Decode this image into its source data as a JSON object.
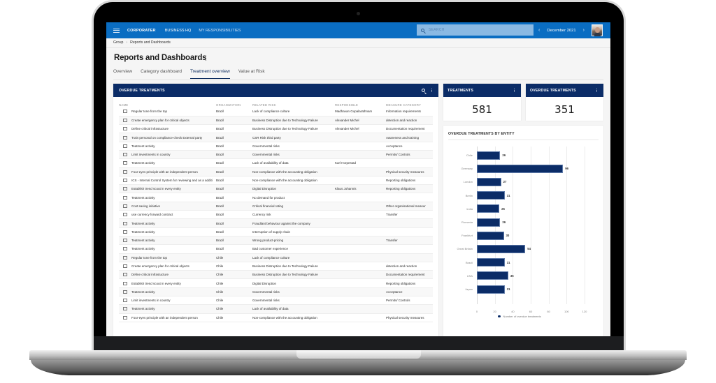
{
  "topbar": {
    "brand": "CORPORATER",
    "nav": [
      "BUSINESS HQ",
      "MY RESPONSIBILITIES"
    ],
    "search_placeholder": "SEARCH",
    "period": "December 2021",
    "prev": "‹",
    "next": "›"
  },
  "breadcrumb": [
    "Group",
    "Reports and Dashboards"
  ],
  "breadcrumb_sep": "›",
  "page": {
    "title": "Reports and Dashboards",
    "kebab": "⋮"
  },
  "tabs": [
    {
      "label": "Overview",
      "active": false
    },
    {
      "label": "Category dashboard",
      "active": false
    },
    {
      "label": "Treatment overview",
      "active": true
    },
    {
      "label": "Value at Risk",
      "active": false
    }
  ],
  "table": {
    "title": "OVERDUE TREATMENTS",
    "columns": [
      "NAME",
      "ORGANIZATION",
      "RELATED RISK",
      "RESPONSIBLE",
      "MEASURE CATEGORY"
    ],
    "rows": [
      [
        "Regular tone from the top",
        "Brazil",
        "Lack of compliance culture",
        "Madhavan Gopalarathnam",
        "Information requirements"
      ],
      [
        "Create emergency plan for critical objects",
        "Brazil",
        "Business Distruption due to Technology Failure",
        "Alexander Michel",
        "detection and reaction"
      ],
      [
        "Define critical infrastucture",
        "Brazil",
        "Business Distruption due to Technology Failure",
        "Alexander Michel",
        "Documentation requirement"
      ],
      [
        "Train personal on compliance-check External party",
        "Brazil",
        "CSR Risk third party",
        "",
        "Awareness and training"
      ],
      [
        "Teatment activity",
        "Brazil",
        "Governmental risks",
        "",
        "Acceptance"
      ],
      [
        "Limit investments in country",
        "Brazil",
        "Governmental risks",
        "",
        "Permits/ Controls"
      ],
      [
        "Teatment activity",
        "Brazil",
        "Lack of availability of data",
        "Karl Horpestad",
        ""
      ],
      [
        "Four-eyes principle with an independent person",
        "Brazil",
        "Non-compliance with the accounting obligation",
        "",
        "Physical security measures"
      ],
      [
        "ICS - Internal Control System for reviewing and as a additi",
        "Brazil",
        "Non-compliance with the accounting obligation",
        "",
        "Reporting obligations"
      ],
      [
        "Establish trend scout in every entity",
        "Brazil",
        "Digital Disruption",
        "Klaus Johannis",
        "Reporting obligations"
      ],
      [
        "Teatment activity",
        "Brazil",
        "No demand for product",
        "",
        ""
      ],
      [
        "Cost saving initiative",
        "Brazil",
        "Critical financial rating",
        "",
        "Other organisational measur"
      ],
      [
        "use currency forward contract",
        "Brazil",
        "Currency risk",
        "",
        "Transfer"
      ],
      [
        "Teatment activity",
        "Brazil",
        "Fraudlant behaviour against the company",
        "",
        ""
      ],
      [
        "Teatment activity",
        "Brazil",
        "Interruption of supply chain",
        "",
        ""
      ],
      [
        "Teatment activity",
        "Brazil",
        "Wrong product-pricing",
        "",
        "Transfer"
      ],
      [
        "Teatment activity",
        "Brazil",
        "Bad customer experience",
        "",
        ""
      ],
      [
        "Regular tone from the top",
        "Chile",
        "Lack of compliance culture",
        "",
        ""
      ],
      [
        "Create emergency plan for critical objects",
        "Chile",
        "Business Distruption due to Technology Failure",
        "",
        "detection and reaction"
      ],
      [
        "Define critical infrastucture",
        "Chile",
        "Business Distruption due to Technology Failure",
        "",
        "Documentation requirement"
      ],
      [
        "Establish trend scout in every entity",
        "Chile",
        "Digital Disruption",
        "",
        "Reporting obligations"
      ],
      [
        "Teatment activity",
        "Chile",
        "Governmental risks",
        "",
        "Acceptance"
      ],
      [
        "Limit investments in country",
        "Chile",
        "Governmental risks",
        "",
        "Permits/ Controls"
      ],
      [
        "Teatment activity",
        "Chile",
        "Lack of availability of data",
        "",
        ""
      ],
      [
        "Four-eyes principle with an independent person",
        "Chile",
        "Non-compliance with the accounting obligation",
        "",
        "Physical security measures"
      ]
    ]
  },
  "kpis": [
    {
      "title": "TREATMENTS",
      "value": "581"
    },
    {
      "title": "OVERDUE TREATMENTS",
      "value": "351"
    }
  ],
  "chart_data": {
    "type": "bar",
    "orientation": "horizontal",
    "title": "OVERDUE TREATMENTS BY ENTITY",
    "categories": [
      "Chile",
      "Germany",
      "London",
      "Berlin",
      "India",
      "Romania",
      "Frankfurt",
      "Great Britain",
      "Brazil",
      "USA",
      "Japan"
    ],
    "series": [
      {
        "name": "Number of overdue treatments",
        "values": [
          26,
          96,
          27,
          31,
          25,
          26,
          30,
          54,
          31,
          35,
          31
        ]
      }
    ],
    "xlim": [
      0,
      120
    ],
    "xticks": [
      0,
      20,
      40,
      60,
      80,
      100,
      120
    ],
    "grid": true,
    "legend_position": "bottom",
    "bar_color": "#0b2c67"
  },
  "colors": {
    "topbar": "#0a6dc2",
    "panel_header": "#0b2c67",
    "active_tab": "#0b2a5e"
  }
}
